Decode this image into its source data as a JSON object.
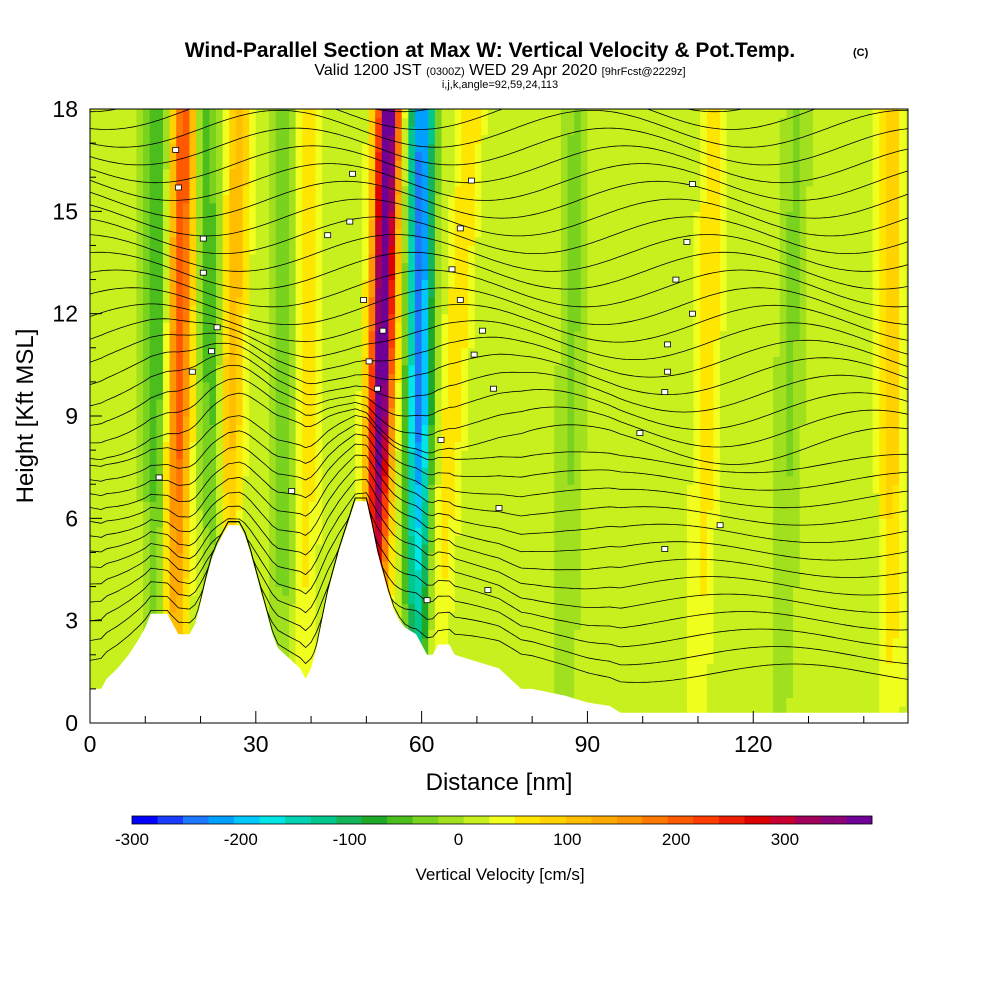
{
  "header": {
    "title": "Wind-Parallel Section at Max W: Vertical Velocity & Pot.Temp.",
    "title_mark": "(C)",
    "valid_prefix": "Valid 1200 JST",
    "valid_zulu": "(0300Z)",
    "valid_date": "WED 29 Apr 2020",
    "forecast_note": "[9hrFcst@2229z]",
    "indices": "i,j,k,angle=92,59,24,113"
  },
  "chart_data": {
    "type": "heatmap",
    "title": "Wind-Parallel Section at Max W: Vertical Velocity & Pot.Temp.",
    "xlabel": "Distance [nm]",
    "ylabel": "Height [Kft MSL]",
    "xlim": [
      0,
      148
    ],
    "ylim": [
      0,
      18
    ],
    "xticks": [
      0,
      30,
      60,
      90,
      120
    ],
    "yticks": [
      0,
      3,
      6,
      9,
      12,
      15,
      18
    ],
    "grid": false,
    "colorbar": {
      "label": "Vertical Velocity [cm/s]",
      "tick_values": [
        -300,
        -200,
        -100,
        0,
        100,
        200,
        300
      ],
      "range": [
        -300,
        380
      ],
      "colors": [
        "#0000ff",
        "#1a3cff",
        "#1e78ff",
        "#00a0ff",
        "#00c8ff",
        "#00e6e6",
        "#00d2b4",
        "#00c88c",
        "#14b45a",
        "#1eaa28",
        "#4bbe1e",
        "#78d21e",
        "#a0e01e",
        "#c8f01e",
        "#f0ff1e",
        "#ffe600",
        "#ffd200",
        "#ffbe00",
        "#ffaa00",
        "#ff9600",
        "#ff7800",
        "#ff5a00",
        "#ff3c00",
        "#f01e00",
        "#dc0000",
        "#c80032",
        "#a0005a",
        "#8c0078",
        "#6e0096"
      ]
    },
    "terrain_kft": [
      [
        0,
        1.0
      ],
      [
        2,
        1.0
      ],
      [
        3,
        1.3
      ],
      [
        5,
        1.6
      ],
      [
        7,
        2.0
      ],
      [
        9,
        2.5
      ],
      [
        10,
        2.8
      ],
      [
        11,
        3.2
      ],
      [
        14,
        3.2
      ],
      [
        15,
        2.9
      ],
      [
        16,
        2.6
      ],
      [
        18,
        2.6
      ],
      [
        19,
        2.9
      ],
      [
        20,
        3.5
      ],
      [
        21,
        4.2
      ],
      [
        22,
        4.8
      ],
      [
        23,
        5.2
      ],
      [
        24,
        5.5
      ],
      [
        25,
        5.8
      ],
      [
        27,
        5.8
      ],
      [
        28,
        5.5
      ],
      [
        29,
        5.0
      ],
      [
        30,
        4.4
      ],
      [
        31,
        3.8
      ],
      [
        32,
        3.2
      ],
      [
        33,
        2.6
      ],
      [
        34,
        2.2
      ],
      [
        36,
        1.9
      ],
      [
        38,
        1.6
      ],
      [
        39,
        1.3
      ],
      [
        40,
        1.6
      ],
      [
        41,
        2.2
      ],
      [
        42,
        3.0
      ],
      [
        43,
        3.8
      ],
      [
        44,
        4.4
      ],
      [
        45,
        5.0
      ],
      [
        46,
        5.5
      ],
      [
        47,
        6.0
      ],
      [
        48,
        6.5
      ],
      [
        50,
        6.5
      ],
      [
        51,
        5.8
      ],
      [
        52,
        5.0
      ],
      [
        53,
        4.4
      ],
      [
        54,
        3.8
      ],
      [
        55,
        3.3
      ],
      [
        56,
        3.0
      ],
      [
        57,
        2.8
      ],
      [
        58,
        2.7
      ],
      [
        59,
        2.6
      ],
      [
        60,
        2.3
      ],
      [
        61,
        2.0
      ],
      [
        62,
        2.0
      ],
      [
        63,
        2.3
      ],
      [
        65,
        2.3
      ],
      [
        66,
        2.0
      ],
      [
        68,
        1.9
      ],
      [
        70,
        1.8
      ],
      [
        72,
        1.7
      ],
      [
        74,
        1.6
      ],
      [
        76,
        1.3
      ],
      [
        78,
        1.0
      ],
      [
        80,
        1.0
      ],
      [
        86,
        0.8
      ],
      [
        90,
        0.6
      ],
      [
        94,
        0.5
      ],
      [
        96,
        0.3
      ],
      [
        148,
        0.3
      ]
    ],
    "updraft_bands": [
      {
        "x_bottom": 15,
        "x_top": 17,
        "value": 200
      },
      {
        "x_bottom": 24,
        "x_top": 27,
        "value": 100
      },
      {
        "x_bottom": 39,
        "x_top": 39,
        "value": 60
      },
      {
        "x_bottom": 51,
        "x_top": 54,
        "value": 380
      },
      {
        "x_bottom": 62,
        "x_top": 69,
        "value": 60
      },
      {
        "x_bottom": 110,
        "x_top": 113,
        "value": 60
      },
      {
        "x_bottom": 145,
        "x_top": 145,
        "value": 80
      }
    ],
    "downdraft_bands": [
      {
        "x_bottom": 12,
        "x_top": 12,
        "value": -80
      },
      {
        "x_bottom": 23,
        "x_top": 21,
        "value": -70
      },
      {
        "x_bottom": 35,
        "x_top": 35,
        "value": -60
      },
      {
        "x_bottom": 59,
        "x_top": 60,
        "value": -260
      },
      {
        "x_bottom": 86,
        "x_top": 88,
        "value": -40
      },
      {
        "x_bottom": 125,
        "x_top": 128,
        "value": -40
      }
    ],
    "contour_label_points": [
      [
        12.5,
        7.2
      ],
      [
        15.5,
        16.8
      ],
      [
        16,
        15.7
      ],
      [
        18.5,
        10.3
      ],
      [
        20.5,
        14.2
      ],
      [
        20.5,
        13.2
      ],
      [
        22,
        10.9
      ],
      [
        23,
        11.6
      ],
      [
        36.5,
        6.8
      ],
      [
        43,
        14.3
      ],
      [
        47,
        14.7
      ],
      [
        47.5,
        16.1
      ],
      [
        49.5,
        12.4
      ],
      [
        50.5,
        10.6
      ],
      [
        52,
        9.8
      ],
      [
        53,
        11.5
      ],
      [
        61,
        3.6
      ],
      [
        63.5,
        8.3
      ],
      [
        65.5,
        13.3
      ],
      [
        67,
        14.5
      ],
      [
        67,
        12.4
      ],
      [
        69,
        15.9
      ],
      [
        69.5,
        10.8
      ],
      [
        71,
        11.5
      ],
      [
        72,
        3.9
      ],
      [
        73,
        9.8
      ],
      [
        74,
        6.3
      ],
      [
        99.5,
        8.5
      ],
      [
        104,
        5.1
      ],
      [
        104,
        9.7
      ],
      [
        104.5,
        11.1
      ],
      [
        104.5,
        10.3
      ],
      [
        106,
        13.0
      ],
      [
        108,
        14.1
      ],
      [
        109,
        15.8
      ],
      [
        109,
        12.0
      ],
      [
        114,
        5.8
      ]
    ]
  }
}
